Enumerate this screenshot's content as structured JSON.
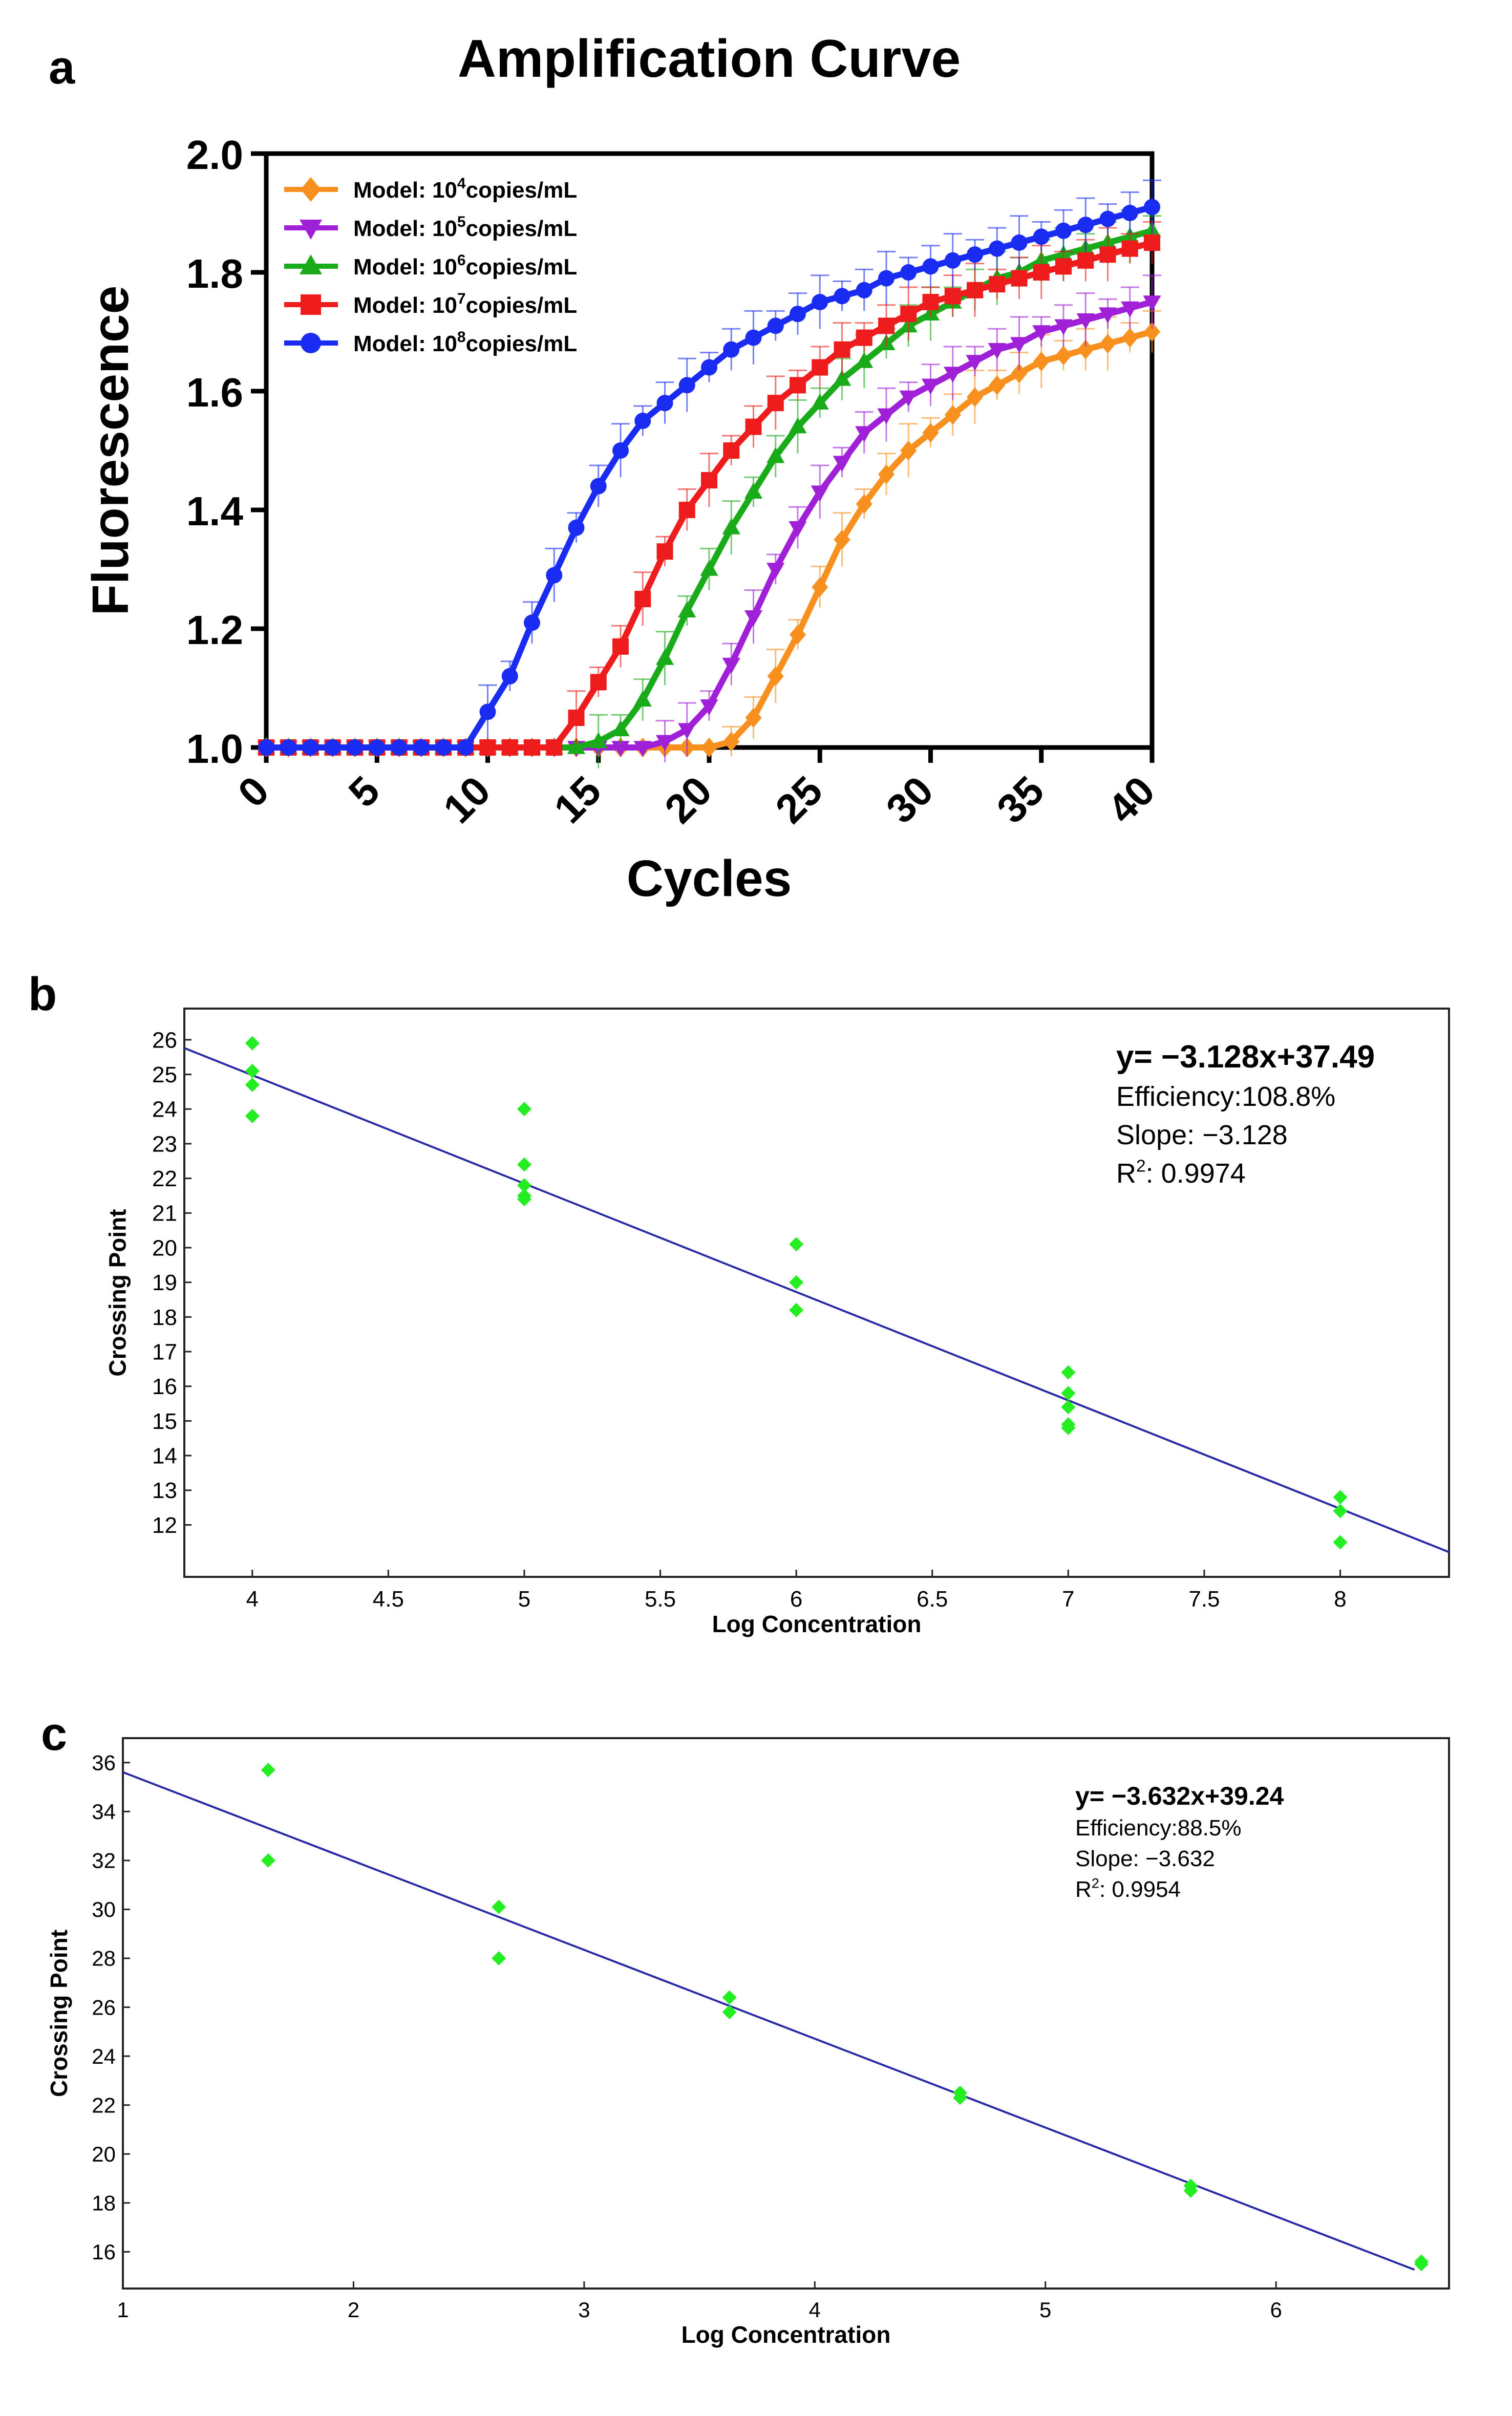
{
  "panels": {
    "a": "a",
    "b": "b",
    "c": "c"
  },
  "chart_data": [
    {
      "type": "line",
      "title": "Amplification Curve",
      "xlabel": "Cycles",
      "ylabel": "Fluorescence",
      "xlim": [
        0,
        40
      ],
      "ylim": [
        1.0,
        2.0
      ],
      "xticks": [
        0,
        5,
        10,
        15,
        20,
        25,
        30,
        35,
        40
      ],
      "yticks": [
        1.0,
        1.2,
        1.4,
        1.6,
        1.8,
        2.0
      ],
      "legend_position": "top-left",
      "error_bars": true,
      "series": [
        {
          "name": "Model: 10⁴copies/mL",
          "legend_base": "Model: 10",
          "legend_exp": "4",
          "legend_unit": "copies/mL",
          "color": "#f7901e",
          "marker": "diamond",
          "x": [
            0,
            1,
            2,
            3,
            4,
            5,
            6,
            7,
            8,
            9,
            10,
            11,
            12,
            13,
            14,
            15,
            16,
            17,
            18,
            19,
            20,
            21,
            22,
            23,
            24,
            25,
            26,
            27,
            28,
            29,
            30,
            31,
            32,
            33,
            34,
            35,
            36,
            37,
            38,
            39,
            40
          ],
          "y": [
            1.0,
            1.0,
            1.0,
            1.0,
            1.0,
            1.0,
            1.0,
            1.0,
            1.0,
            1.0,
            1.0,
            1.0,
            1.0,
            1.0,
            1.0,
            1.0,
            1.0,
            1.0,
            1.0,
            1.0,
            1.0,
            1.01,
            1.05,
            1.12,
            1.19,
            1.27,
            1.35,
            1.41,
            1.46,
            1.5,
            1.53,
            1.56,
            1.59,
            1.61,
            1.63,
            1.65,
            1.66,
            1.67,
            1.68,
            1.69,
            1.7
          ]
        },
        {
          "name": "Model: 10⁵copies/mL",
          "legend_base": "Model: 10",
          "legend_exp": "5",
          "legend_unit": "copies/mL",
          "color": "#a020d8",
          "marker": "triangle-down",
          "x": [
            0,
            1,
            2,
            3,
            4,
            5,
            6,
            7,
            8,
            9,
            10,
            11,
            12,
            13,
            14,
            15,
            16,
            17,
            18,
            19,
            20,
            21,
            22,
            23,
            24,
            25,
            26,
            27,
            28,
            29,
            30,
            31,
            32,
            33,
            34,
            35,
            36,
            37,
            38,
            39,
            40
          ],
          "y": [
            1.0,
            1.0,
            1.0,
            1.0,
            1.0,
            1.0,
            1.0,
            1.0,
            1.0,
            1.0,
            1.0,
            1.0,
            1.0,
            1.0,
            1.0,
            1.0,
            1.0,
            1.0,
            1.01,
            1.03,
            1.07,
            1.14,
            1.22,
            1.3,
            1.37,
            1.43,
            1.48,
            1.53,
            1.56,
            1.59,
            1.61,
            1.63,
            1.65,
            1.67,
            1.68,
            1.7,
            1.71,
            1.72,
            1.73,
            1.74,
            1.75
          ]
        },
        {
          "name": "Model: 10⁶copies/mL",
          "legend_base": "Model: 10",
          "legend_exp": "6",
          "legend_unit": "copies/mL",
          "color": "#1aab1a",
          "marker": "triangle-up",
          "x": [
            0,
            1,
            2,
            3,
            4,
            5,
            6,
            7,
            8,
            9,
            10,
            11,
            12,
            13,
            14,
            15,
            16,
            17,
            18,
            19,
            20,
            21,
            22,
            23,
            24,
            25,
            26,
            27,
            28,
            29,
            30,
            31,
            32,
            33,
            34,
            35,
            36,
            37,
            38,
            39,
            40
          ],
          "y": [
            1.0,
            1.0,
            1.0,
            1.0,
            1.0,
            1.0,
            1.0,
            1.0,
            1.0,
            1.0,
            1.0,
            1.0,
            1.0,
            1.0,
            1.0,
            1.01,
            1.03,
            1.08,
            1.15,
            1.23,
            1.3,
            1.37,
            1.43,
            1.49,
            1.54,
            1.58,
            1.62,
            1.65,
            1.68,
            1.71,
            1.73,
            1.75,
            1.77,
            1.79,
            1.8,
            1.82,
            1.83,
            1.84,
            1.85,
            1.86,
            1.87
          ]
        },
        {
          "name": "Model: 10⁷copies/mL",
          "legend_base": "Model: 10",
          "legend_exp": "7",
          "legend_unit": "copies/mL",
          "color": "#ee1c1c",
          "marker": "square",
          "x": [
            0,
            1,
            2,
            3,
            4,
            5,
            6,
            7,
            8,
            9,
            10,
            11,
            12,
            13,
            14,
            15,
            16,
            17,
            18,
            19,
            20,
            21,
            22,
            23,
            24,
            25,
            26,
            27,
            28,
            29,
            30,
            31,
            32,
            33,
            34,
            35,
            36,
            37,
            38,
            39,
            40
          ],
          "y": [
            1.0,
            1.0,
            1.0,
            1.0,
            1.0,
            1.0,
            1.0,
            1.0,
            1.0,
            1.0,
            1.0,
            1.0,
            1.0,
            1.0,
            1.05,
            1.11,
            1.17,
            1.25,
            1.33,
            1.4,
            1.45,
            1.5,
            1.54,
            1.58,
            1.61,
            1.64,
            1.67,
            1.69,
            1.71,
            1.73,
            1.75,
            1.76,
            1.77,
            1.78,
            1.79,
            1.8,
            1.81,
            1.82,
            1.83,
            1.84,
            1.85
          ]
        },
        {
          "name": "Model: 10⁸copies/mL",
          "legend_base": "Model: 10",
          "legend_exp": "8",
          "legend_unit": "copies/mL",
          "color": "#1a2cf2",
          "marker": "circle",
          "x": [
            0,
            1,
            2,
            3,
            4,
            5,
            6,
            7,
            8,
            9,
            10,
            11,
            12,
            13,
            14,
            15,
            16,
            17,
            18,
            19,
            20,
            21,
            22,
            23,
            24,
            25,
            26,
            27,
            28,
            29,
            30,
            31,
            32,
            33,
            34,
            35,
            36,
            37,
            38,
            39,
            40
          ],
          "y": [
            1.0,
            1.0,
            1.0,
            1.0,
            1.0,
            1.0,
            1.0,
            1.0,
            1.0,
            1.0,
            1.06,
            1.12,
            1.21,
            1.29,
            1.37,
            1.44,
            1.5,
            1.55,
            1.58,
            1.61,
            1.64,
            1.67,
            1.69,
            1.71,
            1.73,
            1.75,
            1.76,
            1.77,
            1.79,
            1.8,
            1.81,
            1.82,
            1.83,
            1.84,
            1.85,
            1.86,
            1.87,
            1.88,
            1.89,
            1.9,
            1.91
          ]
        }
      ]
    },
    {
      "type": "scatter",
      "xlabel": "Log Concentration",
      "ylabel": "Crossing Point",
      "xlim": [
        3.75,
        8.4
      ],
      "ylim": [
        10.5,
        26.9
      ],
      "xticks": [
        "4",
        "4.5",
        "5",
        "5.5",
        "6",
        "6.5",
        "7",
        "7.5",
        "8"
      ],
      "yticks": [
        "12",
        "13",
        "14",
        "15",
        "16",
        "17",
        "18",
        "19",
        "20",
        "21",
        "22",
        "23",
        "24",
        "25",
        "26"
      ],
      "grid": false,
      "annotation": {
        "equation": "y= −3.128x+37.49",
        "efficiency": "Efficiency:108.8%",
        "slope": "Slope: −3.128",
        "r2_base": "R",
        "r2_exp": "2",
        "r2_value": ": 0.9974"
      },
      "fit_line": {
        "slope": -3.128,
        "intercept": 37.49,
        "x_range": [
          3.75,
          8.4
        ],
        "color": "#2a2aa8"
      },
      "point_color": "#22ee22",
      "points": {
        "x": [
          4,
          4,
          4,
          4,
          5,
          5,
          5,
          5,
          5,
          6,
          6,
          6,
          7,
          7,
          7,
          7,
          7,
          8,
          8,
          8
        ],
        "y": [
          25.9,
          25.1,
          24.7,
          23.8,
          24.0,
          22.4,
          21.8,
          21.5,
          21.4,
          20.1,
          19.0,
          18.2,
          16.4,
          15.8,
          15.4,
          14.9,
          14.8,
          12.8,
          12.4,
          11.5
        ]
      }
    },
    {
      "type": "scatter",
      "xlabel": "Log Concentration",
      "ylabel": "Crossing Point",
      "xlim": [
        1,
        6.75
      ],
      "ylim": [
        14.5,
        37
      ],
      "xticks": [
        "1",
        "2",
        "3",
        "4",
        "5",
        "6"
      ],
      "yticks": [
        "16",
        "18",
        "20",
        "22",
        "24",
        "26",
        "28",
        "30",
        "32",
        "34",
        "36"
      ],
      "grid": false,
      "annotation": {
        "equation": "y= −3.632x+39.24",
        "efficiency": "Efficiency:88.5%",
        "slope": "Slope: −3.632",
        "r2_base": "R",
        "r2_exp": "2",
        "r2_value": ": 0.9954"
      },
      "fit_line": {
        "slope": -3.632,
        "intercept": 39.24,
        "x_range": [
          1,
          6.6
        ],
        "color": "#2a2aa8"
      },
      "point_color": "#22ee22",
      "points": {
        "x": [
          1.63,
          1.63,
          2.63,
          2.63,
          3.63,
          3.63,
          4.63,
          4.63,
          5.63,
          5.63,
          6.63,
          6.63
        ],
        "y": [
          35.7,
          32.0,
          30.1,
          28.0,
          26.4,
          25.8,
          22.5,
          22.3,
          18.7,
          18.5,
          15.6,
          15.5
        ]
      }
    }
  ]
}
